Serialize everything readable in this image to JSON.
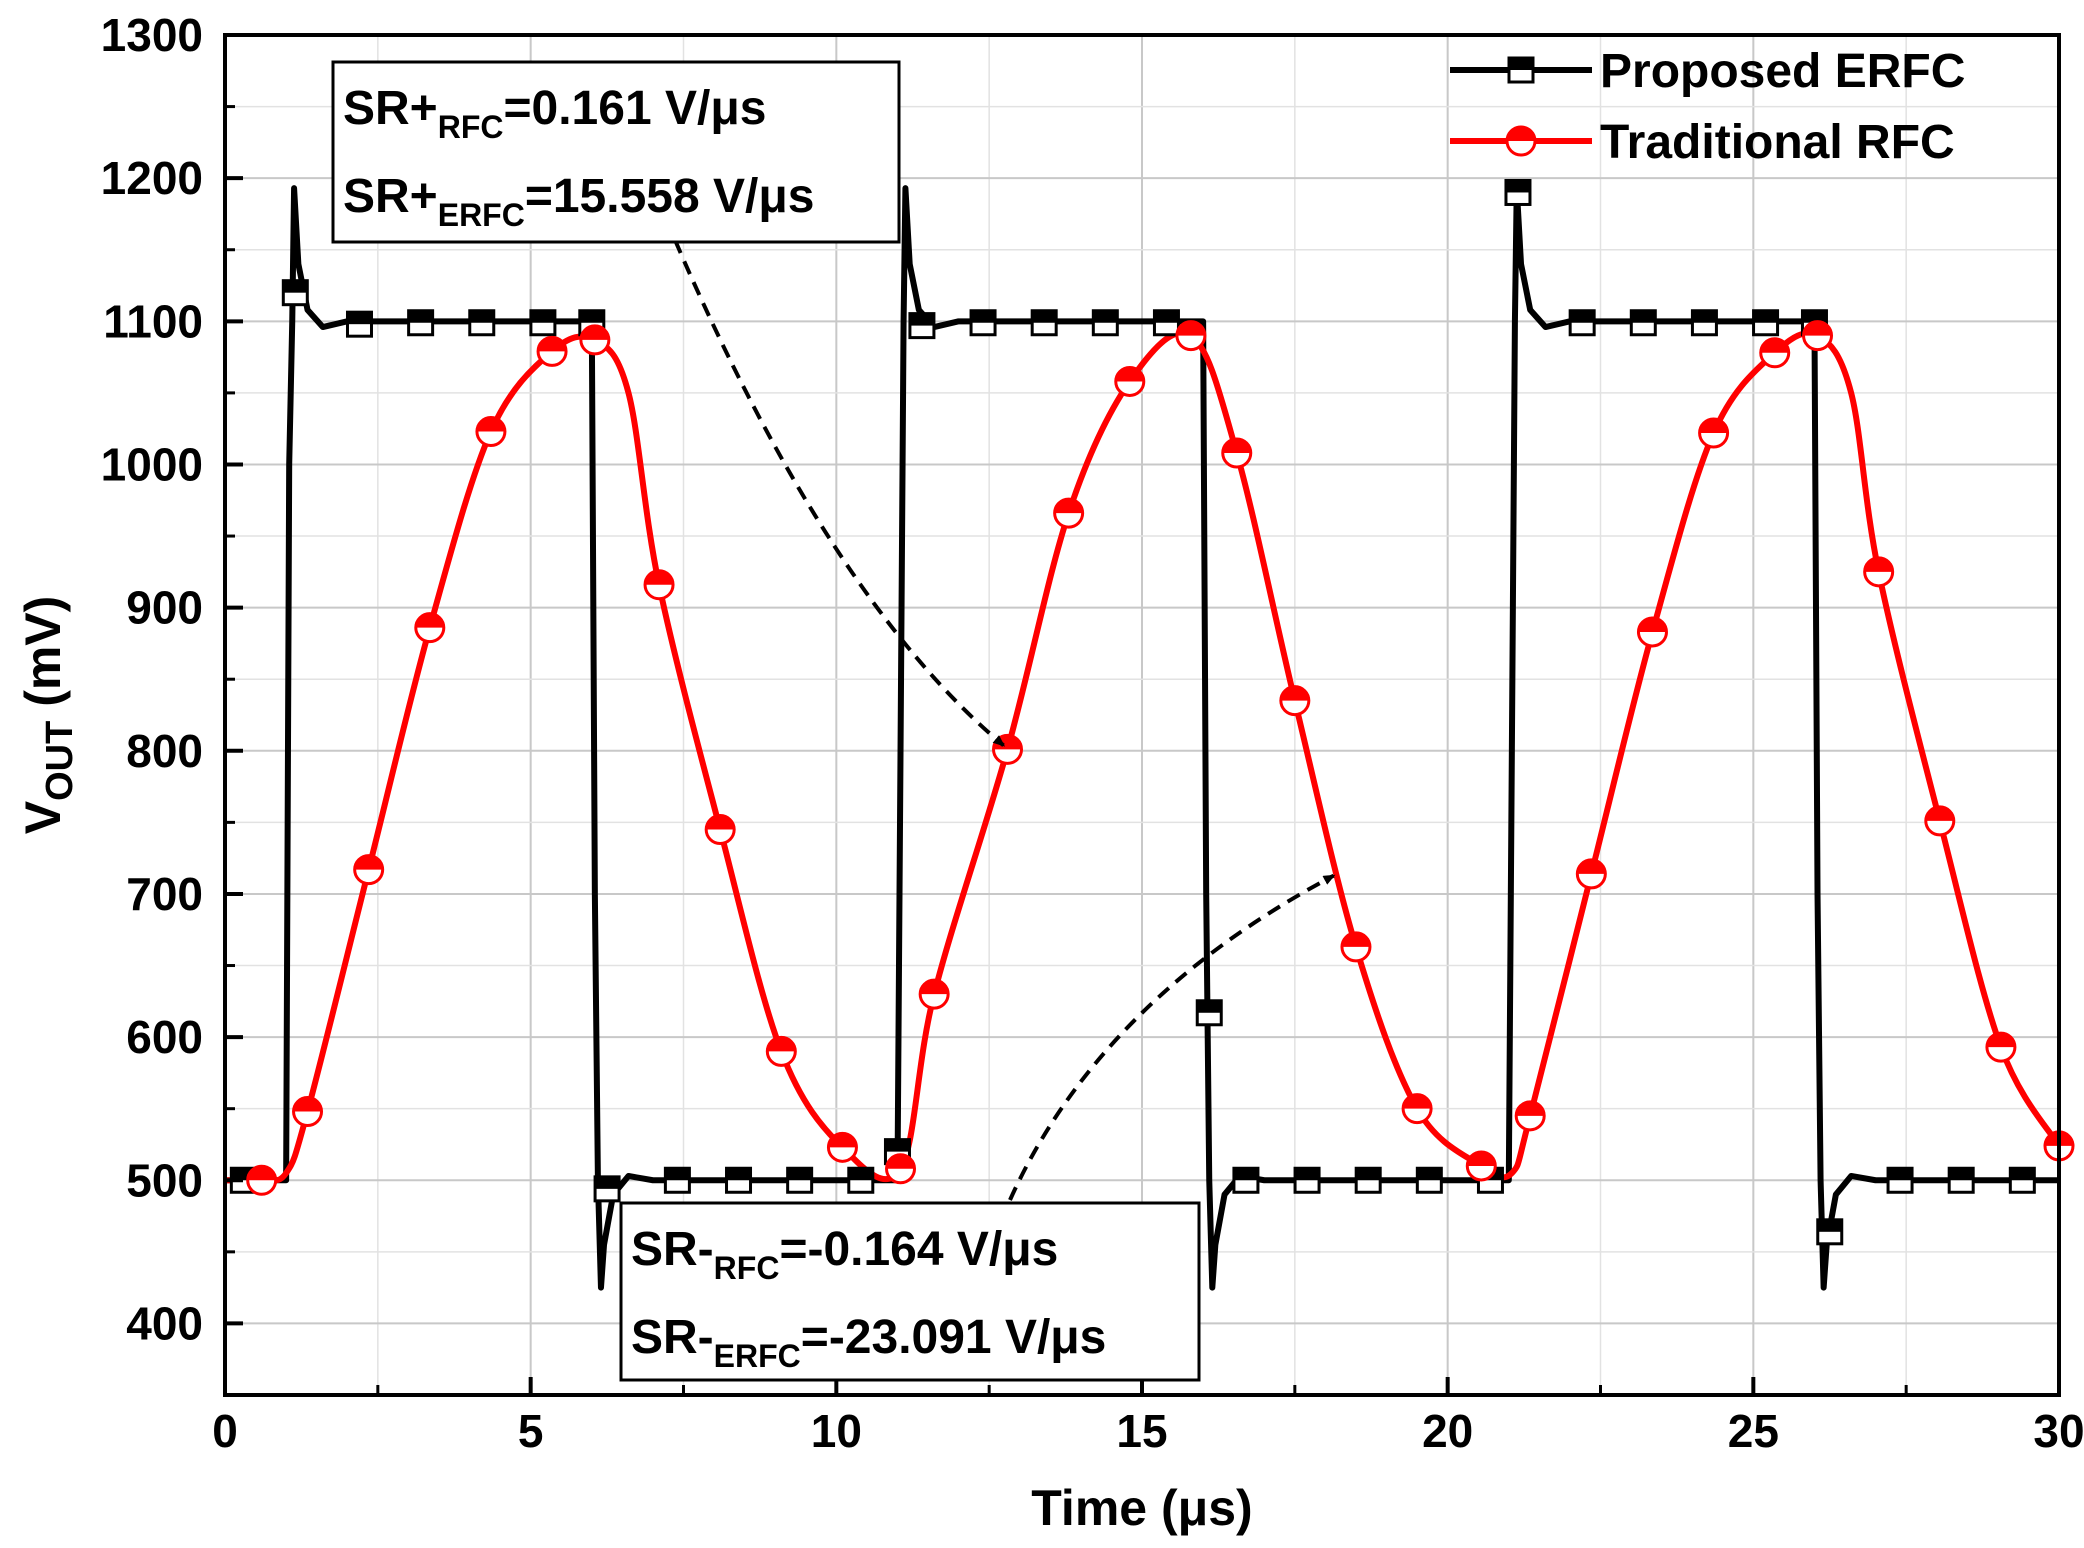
{
  "chart_data": {
    "type": "line",
    "xlabel": "Time (μs)",
    "ylabel": {
      "main": "V",
      "sub": "OUT",
      "unit": " (mV)"
    },
    "xlim": [
      0,
      30
    ],
    "ylim": [
      350,
      1300
    ],
    "x_ticks": [
      0,
      5,
      10,
      15,
      20,
      25,
      30
    ],
    "y_ticks": [
      400,
      500,
      600,
      700,
      800,
      900,
      1000,
      1100,
      1200,
      1300
    ],
    "grid": true,
    "legend_position": "top-right",
    "series": [
      {
        "name": "Proposed ERFC",
        "color": "#000000",
        "marker": "half-filled-square",
        "x": [
          0,
          1.0,
          1.05,
          1.1,
          1.13,
          1.2,
          1.35,
          1.6,
          2.0,
          6.0,
          6.05,
          6.1,
          6.15,
          6.2,
          6.35,
          6.6,
          7.0,
          11.0,
          11.05,
          11.1,
          11.13,
          11.2,
          11.35,
          11.6,
          12.0,
          16.0,
          16.05,
          16.1,
          16.15,
          16.2,
          16.35,
          16.6,
          17.0,
          21.0,
          21.05,
          21.1,
          21.13,
          21.2,
          21.35,
          21.6,
          22.0,
          26.0,
          26.05,
          26.1,
          26.15,
          26.2,
          26.35,
          26.6,
          27.0,
          30.0
        ],
        "y": [
          500,
          500,
          1000,
          1100,
          1193,
          1140,
          1108,
          1096,
          1100,
          1100,
          700,
          500,
          425,
          455,
          490,
          503,
          500,
          500,
          800,
          1100,
          1193,
          1140,
          1108,
          1096,
          1100,
          1100,
          700,
          500,
          425,
          455,
          490,
          503,
          500,
          500,
          800,
          1100,
          1193,
          1140,
          1108,
          1096,
          1100,
          1100,
          700,
          500,
          425,
          455,
          490,
          503,
          500,
          500
        ],
        "marker_x": [
          0.3,
          1.15,
          2.2,
          3.2,
          4.2,
          5.2,
          6.0,
          6.25,
          7.4,
          8.4,
          9.4,
          10.4,
          11.0,
          11.4,
          12.4,
          13.4,
          14.4,
          15.4,
          16.1,
          16.7,
          17.7,
          18.7,
          19.7,
          20.7,
          21.15,
          22.2,
          23.2,
          24.2,
          25.2,
          26.0,
          26.25,
          27.4,
          28.4,
          29.4
        ],
        "marker_y": [
          500,
          1120,
          1098,
          1099,
          1099,
          1099,
          1099,
          494,
          500,
          500,
          500,
          500,
          520,
          1097,
          1099,
          1099,
          1099,
          1099,
          617,
          500,
          500,
          500,
          500,
          500,
          1190,
          1099,
          1099,
          1099,
          1099,
          1099,
          464,
          500,
          500,
          500
        ]
      },
      {
        "name": "Traditional RFC",
        "color": "#ff0000",
        "marker": "half-filled-circle",
        "x": [
          0,
          0.6,
          1.0,
          1.35,
          2.35,
          3.35,
          4.35,
          5.35,
          6.05,
          6.6,
          7.1,
          8.1,
          9.1,
          10.1,
          11.05,
          11.6,
          12.8,
          13.8,
          14.8,
          15.8,
          16.55,
          17.5,
          18.5,
          19.5,
          20.55,
          21.05,
          21.35,
          22.35,
          23.35,
          24.35,
          25.35,
          26.05,
          26.6,
          27.05,
          28.05,
          29.05,
          30.0
        ],
        "y": [
          500,
          500,
          505,
          548,
          717,
          886,
          1023,
          1079,
          1087,
          1050,
          916,
          745,
          590,
          523,
          508,
          630,
          801,
          966,
          1058,
          1090,
          1008,
          835,
          663,
          550,
          510,
          505,
          545,
          714,
          883,
          1022,
          1078,
          1090,
          1050,
          925,
          751,
          593,
          524
        ],
        "marker_x": [
          0.6,
          1.35,
          2.35,
          3.35,
          4.35,
          5.35,
          6.05,
          7.1,
          8.1,
          9.1,
          10.1,
          11.05,
          11.6,
          12.8,
          13.8,
          14.8,
          15.8,
          16.55,
          17.5,
          18.5,
          19.5,
          20.55,
          21.35,
          22.35,
          23.35,
          24.35,
          25.35,
          26.05,
          27.05,
          28.05,
          29.05,
          30.0
        ],
        "marker_y": [
          500,
          548,
          717,
          886,
          1023,
          1079,
          1087,
          916,
          745,
          590,
          523,
          508,
          630,
          801,
          966,
          1058,
          1090,
          1008,
          835,
          663,
          550,
          510,
          545,
          714,
          883,
          1022,
          1078,
          1090,
          925,
          751,
          593,
          524
        ]
      }
    ],
    "annotations": [
      {
        "lines": [
          {
            "pre": "SR+",
            "sub": "RFC",
            "post": "=0.161 V/μs"
          },
          {
            "pre": "SR+",
            "sub": "ERFC",
            "post": "=15.558 V/μs"
          }
        ],
        "arrow_to": [
          12.8,
          801
        ]
      },
      {
        "lines": [
          {
            "pre": "SR-",
            "sub": "RFC",
            "post": "=-0.164 V/μs"
          },
          {
            "pre": "SR-",
            "sub": "ERFC",
            "post": "=-23.091 V/μs"
          }
        ],
        "arrow_to": [
          18.2,
          710
        ]
      }
    ]
  }
}
